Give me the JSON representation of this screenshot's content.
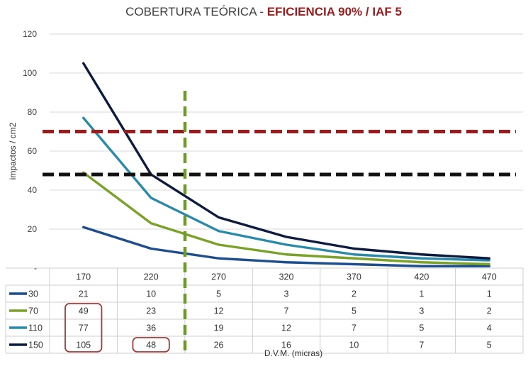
{
  "chart_data": {
    "type": "line",
    "title": "COBERTURA TEÓRICA - ",
    "title_accent": "EFICIENCIA 90% / IAF 5",
    "xlabel": "D.V.M. (micras)",
    "ylabel": "impactos / cm2",
    "ylim": [
      0,
      120
    ],
    "yticks": [
      0,
      20,
      40,
      60,
      80,
      100,
      120
    ],
    "ytick_labels": [
      "-",
      "20",
      "40",
      "60",
      "80",
      "100",
      "120"
    ],
    "categories": [
      "170",
      "220",
      "270",
      "320",
      "370",
      "420",
      "470"
    ],
    "series": [
      {
        "name": "30",
        "values": [
          21,
          10,
          5,
          3,
          2,
          1,
          1
        ],
        "color": "#1f4e8c"
      },
      {
        "name": "70",
        "values": [
          49,
          23,
          12,
          7,
          5,
          3,
          2
        ],
        "color": "#7aa22a"
      },
      {
        "name": "110",
        "values": [
          77,
          36,
          19,
          12,
          7,
          5,
          4
        ],
        "color": "#2a8aa8"
      },
      {
        "name": "150",
        "values": [
          105,
          48,
          26,
          16,
          10,
          7,
          5
        ],
        "color": "#0d1b3e"
      }
    ],
    "reference_lines": [
      {
        "axis": "y",
        "value": 70,
        "color": "#9b1c1c",
        "style": "dashed"
      },
      {
        "axis": "y",
        "value": 48,
        "color": "#111111",
        "style": "dashed"
      },
      {
        "axis": "x",
        "value": 2.45,
        "color": "#6f9a2a",
        "style": "dashed"
      }
    ],
    "highlighted_cells": [
      {
        "series_from": 1,
        "series_to": 3,
        "category": 0,
        "color": "#a33a3a"
      },
      {
        "series_from": 3,
        "series_to": 3,
        "category": 1,
        "color": "#a33a3a"
      }
    ],
    "grid": true,
    "legend": "data table below chart"
  }
}
